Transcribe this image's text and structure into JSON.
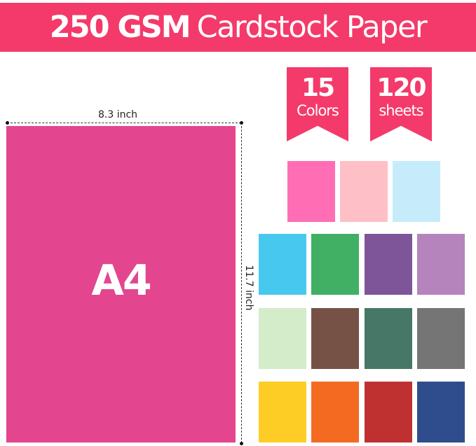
{
  "banner": {
    "bold": "250 GSM",
    "normal": "Cardstock Paper",
    "color": "#f43a6a"
  },
  "badges": [
    {
      "number": "15",
      "label": "Colors"
    },
    {
      "number": "120",
      "label": "sheets"
    }
  ],
  "sheet": {
    "label": "A4",
    "color": "#e3468f",
    "width_label": "8.3 inch",
    "height_label": "11.7 inch"
  },
  "swatches": {
    "top_row": [
      "#ff6eb4",
      "#ffbfc7",
      "#c6ecfb"
    ],
    "grid": [
      [
        "#47c9ef",
        "#41af64",
        "#7d5598",
        "#b584bd"
      ],
      [
        "#d4ecca",
        "#765246",
        "#477766",
        "#757575"
      ],
      [
        "#fecd25",
        "#f46a21",
        "#bf3131",
        "#2f4d8c"
      ]
    ]
  }
}
